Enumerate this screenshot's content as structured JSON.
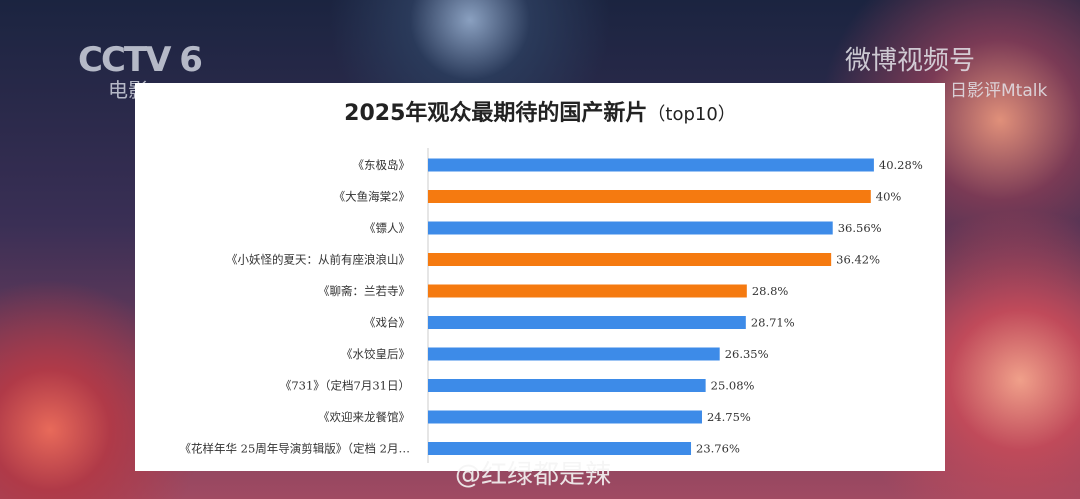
{
  "overlay": {
    "channel_logo": "CCTV 6",
    "channel_sub": "电影",
    "watermark_top": "微博视频号",
    "watermark_sub": "日影评Mtalk",
    "watermark_bottom": "@红绿都是辣"
  },
  "chart_data": {
    "type": "bar",
    "orientation": "horizontal",
    "title": "2025年观众最期待的国产新片",
    "title_suffix": "（top10）",
    "categories": [
      "《东极岛》",
      "《大鱼海棠2》",
      "《镖人》",
      "《小妖怪的夏天：从前有座浪浪山》",
      "《聊斋：兰若寺》",
      "《戏台》",
      "《水饺皇后》",
      "《731》（定档7月31日）",
      "《欢迎来龙餐馆》",
      "《花样年华 25周年导演剪辑版》（定档 2月…"
    ],
    "values": [
      40.28,
      40,
      36.56,
      36.42,
      28.8,
      28.71,
      26.35,
      25.08,
      24.75,
      23.76
    ],
    "data_labels": [
      "40.28%",
      "40%",
      "36.56%",
      "36.42%",
      "28.8%",
      "28.71%",
      "26.35%",
      "25.08%",
      "24.75%",
      "23.76%"
    ],
    "bar_colors": [
      "#3d8be8",
      "#f57a10",
      "#3d8be8",
      "#f57a10",
      "#f57a10",
      "#3d8be8",
      "#3d8be8",
      "#3d8be8",
      "#3d8be8",
      "#3d8be8"
    ],
    "xlim": [
      0,
      46
    ],
    "grid": false,
    "legend": "none"
  }
}
